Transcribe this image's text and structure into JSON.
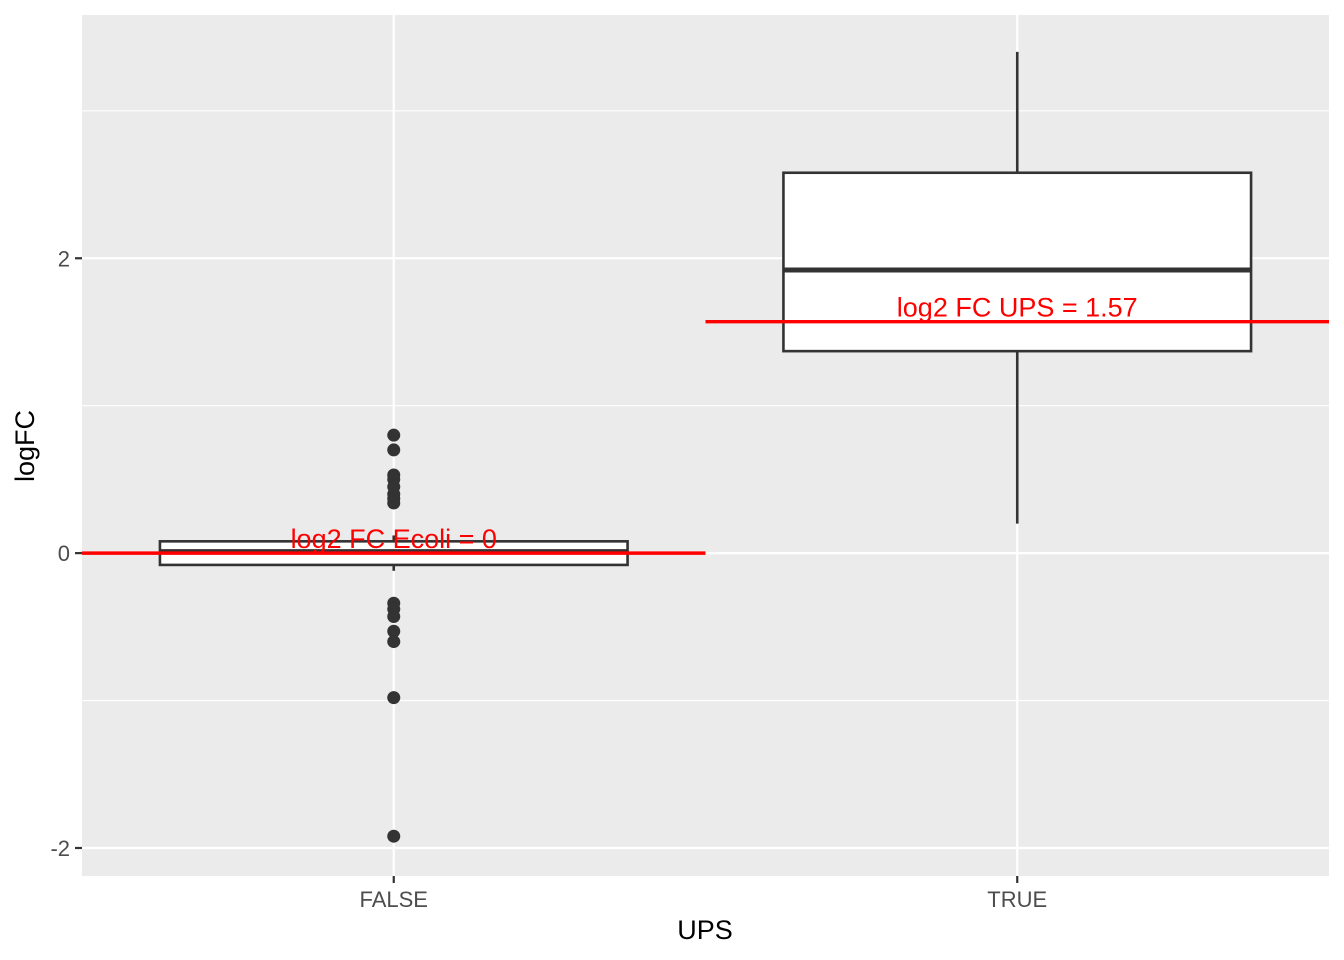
{
  "chart_data": {
    "type": "boxplot",
    "xlabel": "UPS",
    "ylabel": "logFC",
    "categories": [
      "FALSE",
      "TRUE"
    ],
    "ylim": [
      -2.19,
      3.65
    ],
    "yticks": [
      -2,
      0,
      2
    ],
    "ytick_labels": [
      "-2",
      "0",
      "2"
    ],
    "grid": true,
    "boxes": [
      {
        "category": "FALSE",
        "min": -0.12,
        "q1": -0.08,
        "median": 0.01,
        "q3": 0.08,
        "max": 0.12,
        "outliers": [
          0.8,
          0.7,
          0.53,
          0.5,
          0.45,
          0.4,
          0.37,
          0.34,
          -0.34,
          -0.38,
          -0.43,
          -0.53,
          -0.6,
          -0.98,
          -1.92
        ]
      },
      {
        "category": "TRUE",
        "min": 0.2,
        "q1": 1.37,
        "median": 1.92,
        "q3": 2.58,
        "max": 3.4,
        "outliers": []
      }
    ],
    "reference_lines": [
      {
        "category": "FALSE",
        "value": 0,
        "label": "log2 FC Ecoli = 0",
        "color": "#ff0000"
      },
      {
        "category": "TRUE",
        "value": 1.57,
        "label": "log2 FC UPS = 1.57",
        "color": "#ff0000"
      }
    ],
    "colors": {
      "panel_background": "#ebebeb",
      "grid": "#ffffff",
      "box_fill": "#ffffff",
      "box_stroke": "#333333",
      "reference": "#ff0000"
    }
  }
}
